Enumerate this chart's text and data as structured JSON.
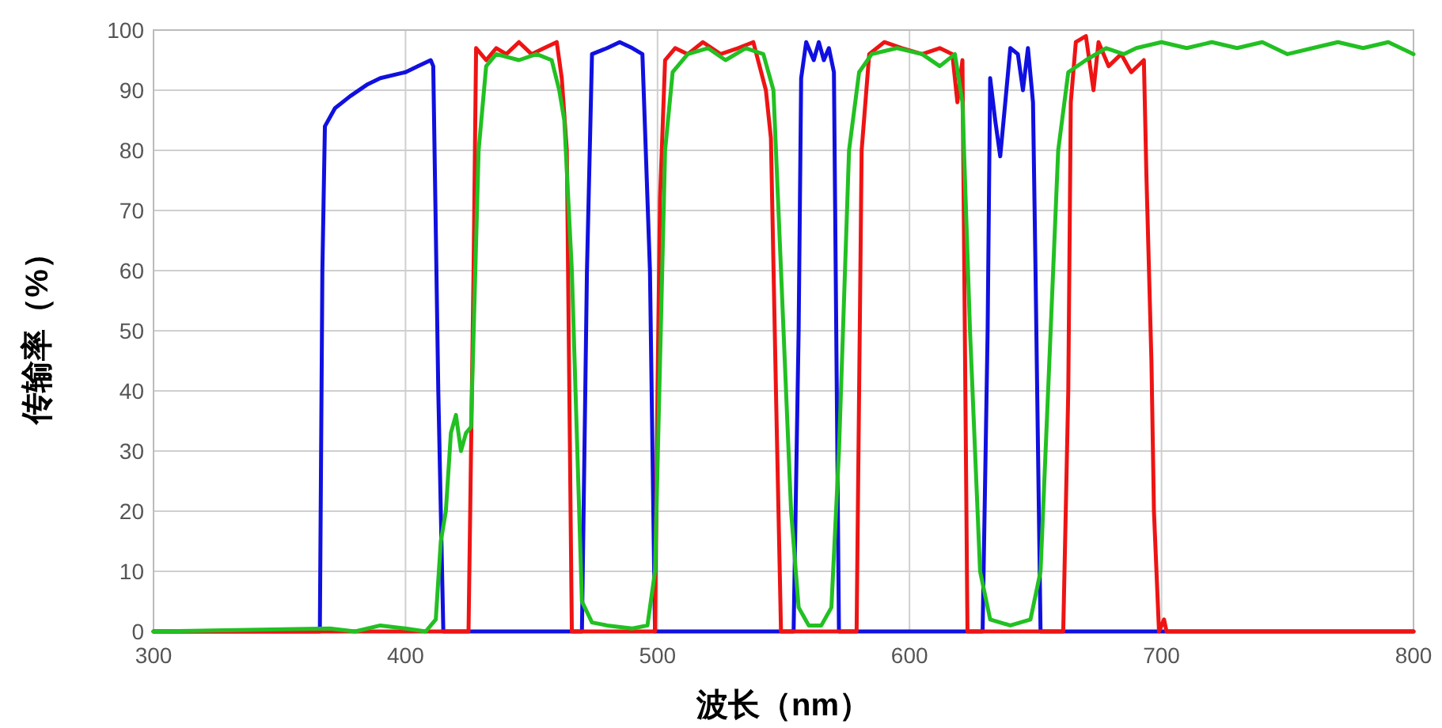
{
  "chart_data": {
    "type": "line",
    "xlabel": "波长（nm）",
    "ylabel": "传输率（%）",
    "xlim": [
      300,
      800
    ],
    "ylim": [
      0,
      100
    ],
    "xticks": [
      300,
      400,
      500,
      600,
      700,
      800
    ],
    "yticks": [
      0,
      10,
      20,
      30,
      40,
      50,
      60,
      70,
      80,
      90,
      100
    ],
    "grid": true,
    "marker": "none",
    "line_style": "solid",
    "series": [
      {
        "color": "#1010e0",
        "x": [
          300,
          366,
          367,
          368,
          372,
          378,
          385,
          390,
          400,
          405,
          410,
          411,
          413,
          415,
          470,
          472,
          474,
          480,
          485,
          490,
          494,
          497,
          499,
          554,
          556,
          557,
          559,
          562,
          564,
          566,
          568,
          570,
          572,
          629,
          631,
          632,
          634,
          636,
          638,
          640,
          643,
          645,
          647,
          649,
          650,
          652,
          800
        ],
        "values": [
          0,
          0,
          60,
          84,
          87,
          89,
          91,
          92,
          93,
          94,
          95,
          94,
          40,
          0,
          0,
          60,
          96,
          97,
          98,
          97,
          96,
          60,
          0,
          0,
          50,
          92,
          98,
          95,
          98,
          95,
          97,
          93,
          0,
          0,
          50,
          92,
          85,
          79,
          88,
          97,
          96,
          90,
          97,
          88,
          60,
          0,
          0
        ]
      },
      {
        "color": "#ee1414",
        "x": [
          300,
          425,
          427,
          428,
          432,
          436,
          440,
          445,
          450,
          455,
          460,
          462,
          464,
          466,
          499,
          500,
          501,
          503,
          507,
          512,
          518,
          525,
          532,
          538,
          543,
          545,
          547,
          549,
          579,
          580,
          581,
          584,
          590,
          597,
          605,
          612,
          617,
          619,
          621,
          623,
          661,
          663,
          664,
          666,
          670,
          673,
          675,
          679,
          684,
          688,
          693,
          694,
          696,
          697,
          699,
          701,
          702,
          800
        ],
        "values": [
          0,
          0,
          60,
          97,
          95,
          97,
          96,
          98,
          96,
          97,
          98,
          92,
          80,
          0,
          0,
          40,
          72,
          95,
          97,
          96,
          98,
          96,
          97,
          98,
          90,
          82,
          40,
          0,
          0,
          40,
          80,
          96,
          98,
          97,
          96,
          97,
          96,
          88,
          95,
          0,
          0,
          40,
          88,
          98,
          99,
          90,
          98,
          94,
          96,
          93,
          95,
          76,
          45,
          20,
          0,
          2,
          0,
          0
        ]
      },
      {
        "color": "#22c022",
        "x": [
          300,
          370,
          380,
          390,
          400,
          408,
          412,
          414,
          416,
          418,
          420,
          422,
          424,
          426,
          429,
          432,
          436,
          445,
          452,
          458,
          461,
          463,
          466,
          470,
          474,
          480,
          490,
          496,
          499,
          503,
          506,
          512,
          520,
          527,
          535,
          542,
          546,
          549,
          553,
          556,
          560,
          565,
          569,
          572,
          576,
          580,
          585,
          595,
          605,
          612,
          618,
          621,
          624,
          628,
          632,
          640,
          648,
          652,
          655,
          659,
          663,
          670,
          678,
          685,
          690,
          700,
          710,
          720,
          730,
          740,
          750,
          760,
          770,
          780,
          790,
          800
        ],
        "values": [
          0,
          0.5,
          0,
          1,
          0.5,
          0,
          2,
          15,
          20,
          33,
          36,
          30,
          33,
          34,
          80,
          94,
          96,
          95,
          96,
          95,
          90,
          85,
          60,
          5,
          1.5,
          1,
          0.5,
          1,
          10,
          80,
          93,
          96,
          97,
          95,
          97,
          96,
          90,
          60,
          20,
          4,
          1,
          1,
          4,
          30,
          80,
          93,
          96,
          97,
          96,
          94,
          96,
          88,
          50,
          10,
          2,
          1,
          2,
          10,
          40,
          80,
          93,
          95,
          97,
          96,
          97,
          98,
          97,
          98,
          97,
          98,
          96,
          97,
          98,
          97,
          98,
          96
        ]
      }
    ]
  }
}
